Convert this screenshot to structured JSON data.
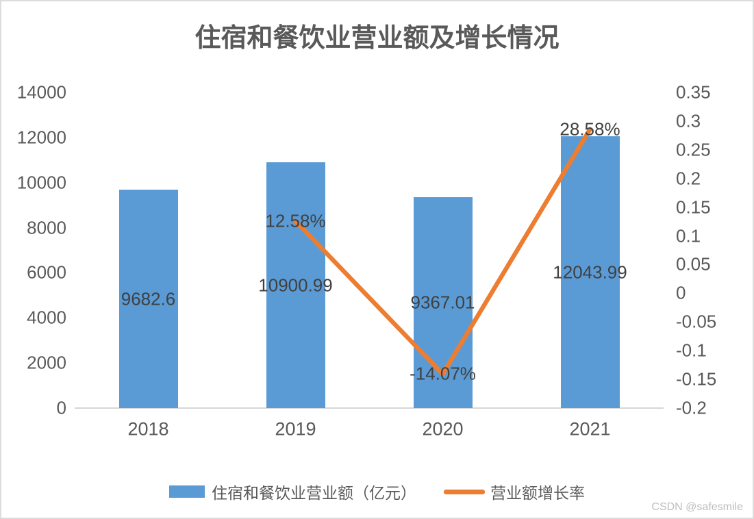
{
  "page": {
    "background": "#ffffff",
    "border_color": "#dcdcdc",
    "watermark": "CSDN @safesmile"
  },
  "chart_data": {
    "type": "combo",
    "title": "住宿和餐饮业营业额及增长情况",
    "categories": [
      "2018",
      "2019",
      "2020",
      "2021"
    ],
    "series": [
      {
        "name": "住宿和餐饮业营业额（亿元）",
        "type": "bar",
        "axis": "left",
        "color": "#5B9BD5",
        "values": [
          9682.6,
          10900.99,
          9367.01,
          12043.99
        ],
        "labels": [
          "9682.6",
          "10900.99",
          "9367.01",
          "12043.99"
        ]
      },
      {
        "name": "营业额增长率",
        "type": "line",
        "axis": "right",
        "color": "#ED7D31",
        "values": [
          null,
          0.1258,
          -0.1407,
          0.2858
        ],
        "labels": [
          null,
          "12.58%",
          "-14.07%",
          "28.58%"
        ]
      }
    ],
    "left_axis": {
      "min": 0,
      "max": 14000,
      "step": 2000,
      "ticks": [
        0,
        2000,
        4000,
        6000,
        8000,
        10000,
        12000,
        14000
      ]
    },
    "right_axis": {
      "min": -0.2,
      "max": 0.35,
      "step": 0.05,
      "ticks": [
        -0.2,
        -0.15,
        -0.1,
        -0.05,
        0,
        0.05,
        0.1,
        0.15,
        0.2,
        0.25,
        0.3,
        0.35
      ]
    },
    "grid": false,
    "legend_position": "bottom"
  },
  "legend": {
    "bar_label": "住宿和餐饮业营业额（亿元）",
    "line_label": "营业额增长率"
  }
}
